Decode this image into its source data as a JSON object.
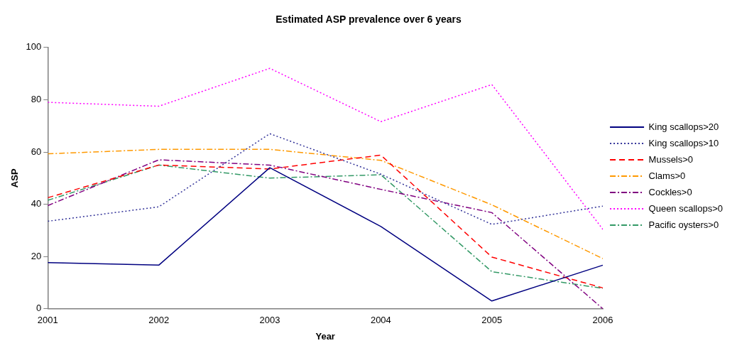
{
  "chart_data": {
    "type": "line",
    "title": "Estimated ASP prevalence over 6 years",
    "xlabel": "Year",
    "ylabel": "ASP",
    "x": [
      2001,
      2002,
      2003,
      2004,
      2005,
      2006
    ],
    "xlim": [
      2001,
      2006
    ],
    "xticks": [
      2001,
      2002,
      2003,
      2004,
      2005,
      2006
    ],
    "ylim": [
      0,
      100
    ],
    "yticks": [
      0,
      20,
      40,
      60,
      80,
      100
    ],
    "grid": false,
    "legend": "right",
    "marker": "none",
    "series": [
      {
        "name": "King scallops>20",
        "color": "#000080",
        "line_style": "solid",
        "values": [
          17.7,
          16.7,
          54,
          31.5,
          3,
          16.7
        ]
      },
      {
        "name": "King scallops>10",
        "color": "#333399",
        "line_style": "dotted",
        "values": [
          33.5,
          39,
          67,
          51.5,
          32.3,
          39.3
        ]
      },
      {
        "name": "Mussels>0",
        "color": "#ff0000",
        "line_style": "dashed",
        "values": [
          42.5,
          55,
          53.5,
          58.8,
          19.8,
          8
        ]
      },
      {
        "name": "Clams>0",
        "color": "#ff9900",
        "line_style": "dashdot",
        "values": [
          59.3,
          61,
          61,
          56.8,
          39.8,
          19.2
        ]
      },
      {
        "name": "Cockles>0",
        "color": "#800080",
        "line_style": "dashdot",
        "values": [
          39.5,
          57,
          55,
          45.7,
          36.8,
          0
        ]
      },
      {
        "name": "Queen scallops>0",
        "color": "#ff00ff",
        "line_style": "dotted",
        "values": [
          79,
          77.5,
          92,
          71.6,
          85.8,
          30.4
        ]
      },
      {
        "name": "Pacific oysters>0",
        "color": "#339966",
        "line_style": "dashdot",
        "values": [
          41.5,
          55,
          50,
          51.3,
          14.2,
          7.8
        ]
      }
    ]
  }
}
